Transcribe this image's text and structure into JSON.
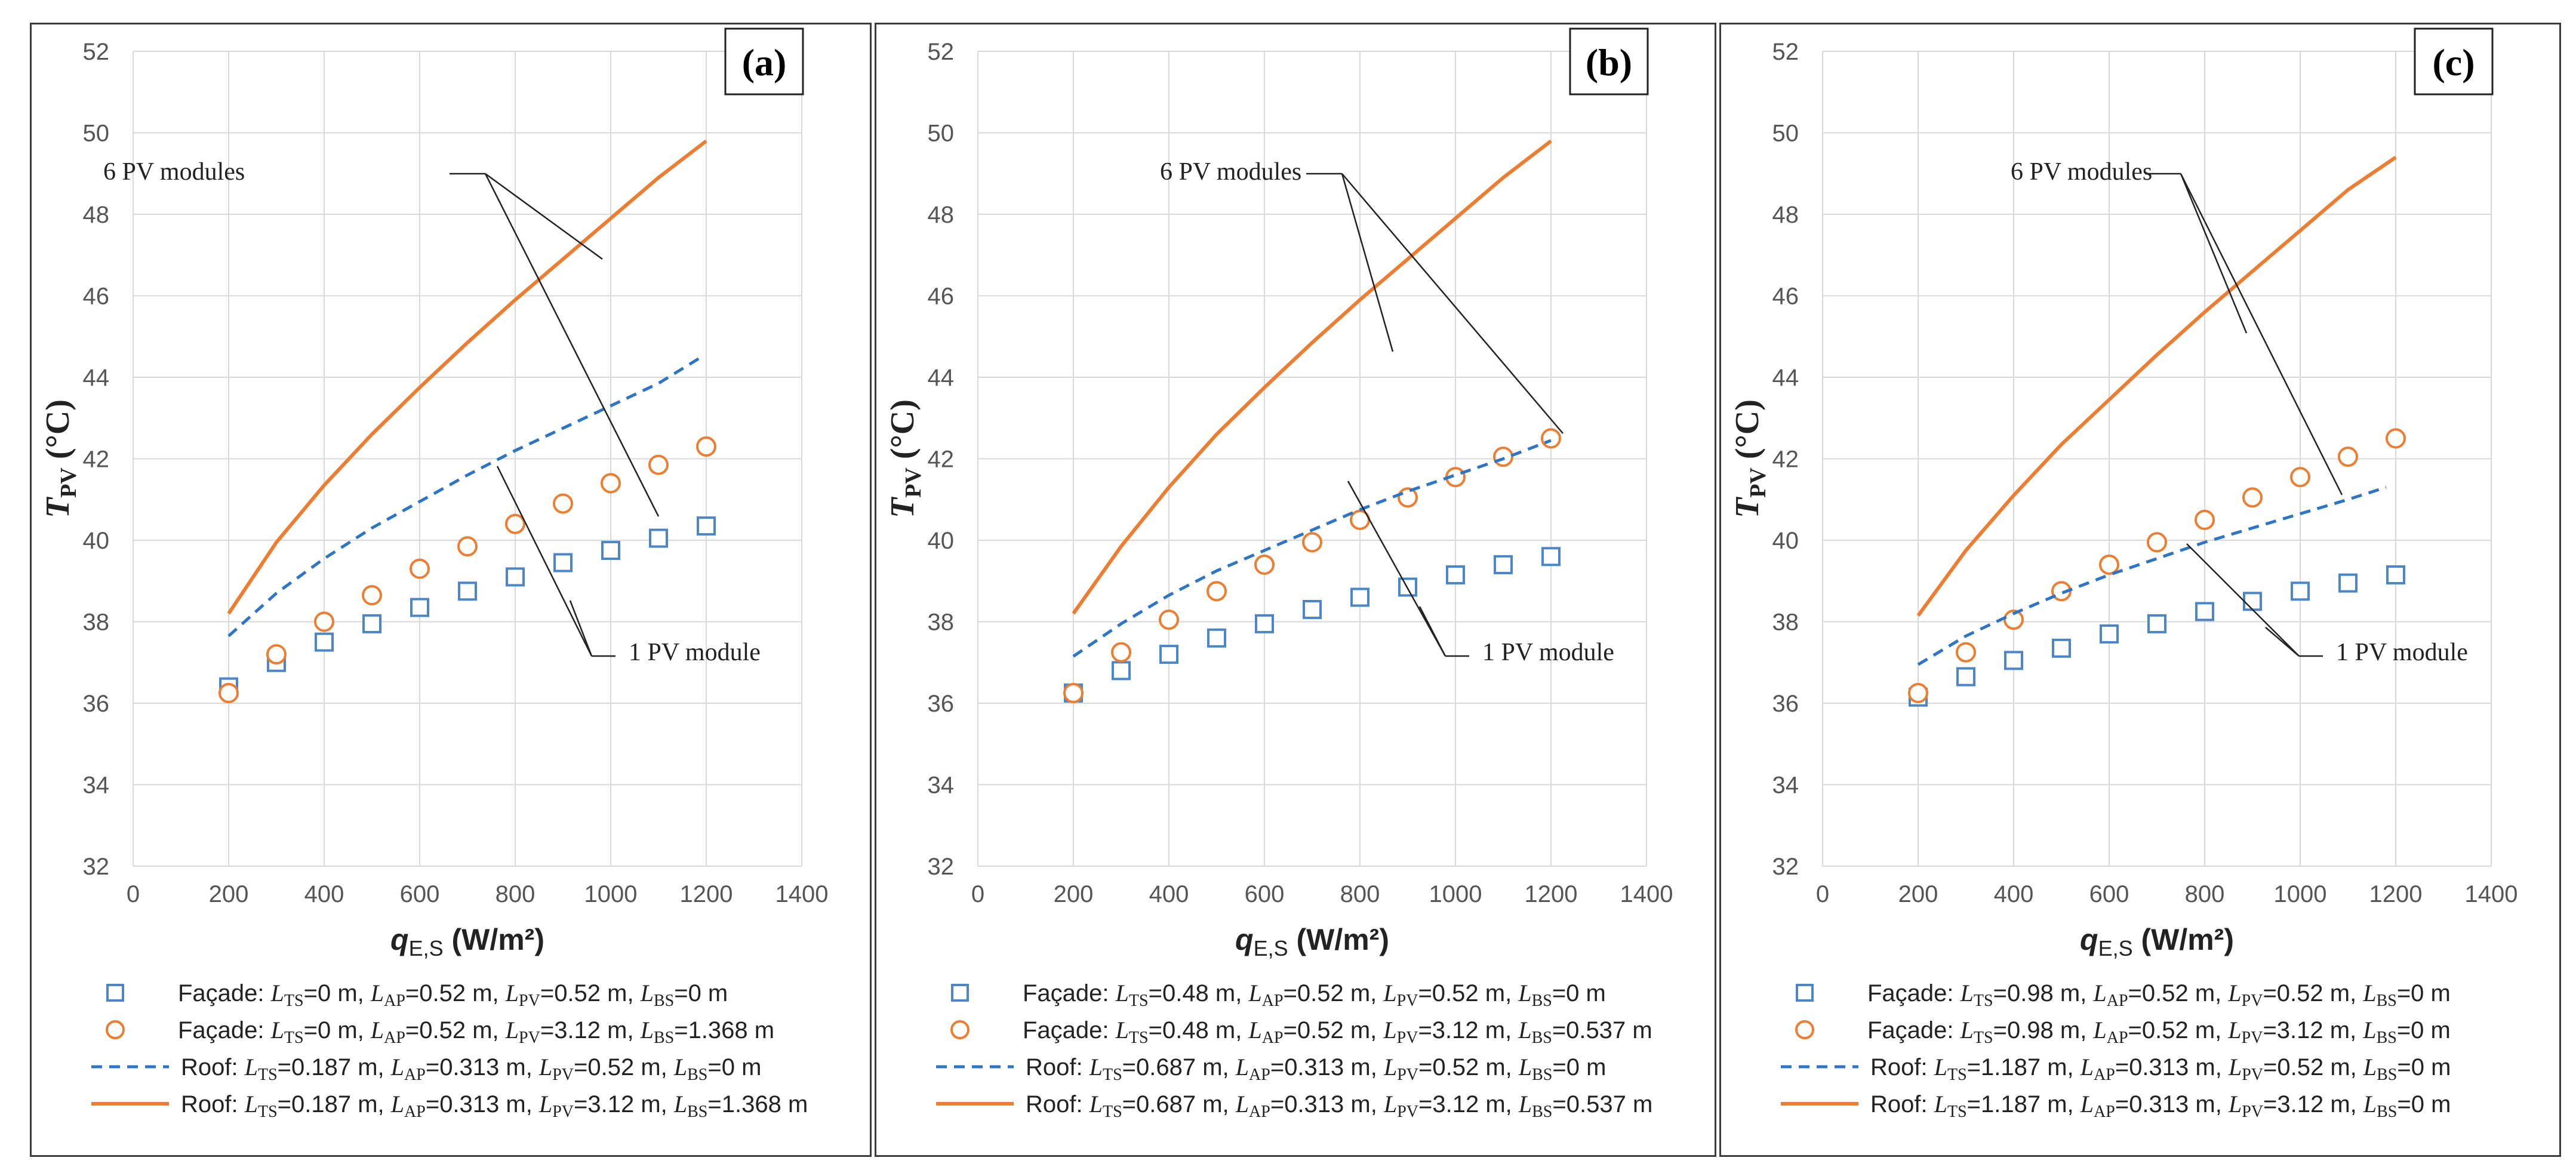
{
  "chart_data": [
    {
      "panel_label": "(a)",
      "type": "scatter",
      "ylabel": "T",
      "ylabel_sub": "PV",
      "ylabel_unit": " (°C)",
      "xlabel": "q",
      "xlabel_sub": "E,S",
      "xlabel_unit": " (W/m²)",
      "xlim": [
        0,
        1400
      ],
      "ylim": [
        32,
        52
      ],
      "xticks": [
        0,
        200,
        400,
        600,
        800,
        1000,
        1200,
        1400
      ],
      "yticks": [
        32,
        34,
        36,
        38,
        40,
        42,
        44,
        46,
        48,
        50,
        52
      ],
      "grid": true,
      "annotations": {
        "six": "6 PV modules",
        "one": "1 PV module"
      },
      "series": [
        {
          "name": "Façade: LTS=0 m, LAP=0.52 m, LPV=0.52 m, LBS=0 m",
          "legend": {
            "prefix": "Façade: ",
            "parts": [
              [
                "L",
                "TS",
                "=0 m, "
              ],
              [
                "L",
                "AP",
                "=0.52 m, "
              ],
              [
                "L",
                "PV",
                "=0.52 m, "
              ],
              [
                "L",
                "BS",
                "=0 m"
              ]
            ]
          },
          "style": "square",
          "color": "#4a86c8",
          "x": [
            200,
            300,
            400,
            500,
            600,
            700,
            800,
            900,
            1000,
            1100,
            1200
          ],
          "y": [
            36.4,
            37.0,
            37.5,
            37.95,
            38.35,
            38.75,
            39.1,
            39.45,
            39.75,
            40.05,
            40.35
          ]
        },
        {
          "name": "Façade: LTS=0 m, LAP=0.52 m, LPV=3.12 m, LBS=1.368 m",
          "legend": {
            "prefix": "Façade: ",
            "parts": [
              [
                "L",
                "TS",
                "=0 m, "
              ],
              [
                "L",
                "AP",
                "=0.52 m, "
              ],
              [
                "L",
                "PV",
                "=3.12 m, "
              ],
              [
                "L",
                "BS",
                "=1.368 m"
              ]
            ]
          },
          "style": "circle",
          "color": "#ed7d31",
          "x": [
            200,
            300,
            400,
            500,
            600,
            700,
            800,
            900,
            1000,
            1100,
            1200
          ],
          "y": [
            36.25,
            37.2,
            38.0,
            38.65,
            39.3,
            39.85,
            40.4,
            40.9,
            41.4,
            41.85,
            42.3
          ]
        },
        {
          "name": "Roof: LTS=0.187 m, LAP=0.313 m, LPV=0.52 m, LBS=0 m",
          "legend": {
            "prefix": "Roof: ",
            "parts": [
              [
                "L",
                "TS",
                "=0.187 m, "
              ],
              [
                "L",
                "AP",
                "=0.313 m, "
              ],
              [
                "L",
                "PV",
                "=0.52 m, "
              ],
              [
                "L",
                "BS",
                "=0 m"
              ]
            ]
          },
          "style": "dashed",
          "color": "#2e75c6",
          "x": [
            200,
            300,
            400,
            500,
            600,
            700,
            800,
            900,
            1000,
            1100,
            1190
          ],
          "y": [
            37.65,
            38.7,
            39.55,
            40.3,
            40.95,
            41.6,
            42.2,
            42.75,
            43.3,
            43.85,
            44.5
          ]
        },
        {
          "name": "Roof: LTS=0.187 m, LAP=0.313 m, LPV=3.12 m, LBS=1.368 m",
          "legend": {
            "prefix": "Roof: ",
            "parts": [
              [
                "L",
                "TS",
                "=0.187 m, "
              ],
              [
                "L",
                "AP",
                "=0.313 m, "
              ],
              [
                "L",
                "PV",
                "=3.12 m, "
              ],
              [
                "L",
                "BS",
                "=1.368 m"
              ]
            ]
          },
          "style": "solid",
          "color": "#ed7d31",
          "x": [
            200,
            300,
            400,
            500,
            600,
            700,
            800,
            900,
            1000,
            1100,
            1200
          ],
          "y": [
            38.2,
            39.95,
            41.35,
            42.6,
            43.75,
            44.85,
            45.9,
            46.9,
            47.9,
            48.9,
            49.8
          ]
        }
      ]
    },
    {
      "panel_label": "(b)",
      "type": "scatter",
      "ylabel": "T",
      "ylabel_sub": "PV",
      "ylabel_unit": " (°C)",
      "xlabel": "q",
      "xlabel_sub": "E,S",
      "xlabel_unit": " (W/m²)",
      "xlim": [
        0,
        1400
      ],
      "ylim": [
        32,
        52
      ],
      "xticks": [
        0,
        200,
        400,
        600,
        800,
        1000,
        1200,
        1400
      ],
      "yticks": [
        32,
        34,
        36,
        38,
        40,
        42,
        44,
        46,
        48,
        50,
        52
      ],
      "grid": true,
      "annotations": {
        "six": "6 PV modules",
        "one": "1 PV module"
      },
      "series": [
        {
          "name": "Façade: LTS=0.48 m, LAP=0.52 m, LPV=0.52 m, LBS=0 m",
          "legend": {
            "prefix": "Façade: ",
            "parts": [
              [
                "L",
                "TS",
                "=0.48 m, "
              ],
              [
                "L",
                "AP",
                "=0.52 m, "
              ],
              [
                "L",
                "PV",
                "=0.52 m, "
              ],
              [
                "L",
                "BS",
                "=0 m"
              ]
            ]
          },
          "style": "square",
          "color": "#4a86c8",
          "x": [
            200,
            300,
            400,
            500,
            600,
            700,
            800,
            900,
            1000,
            1100,
            1200
          ],
          "y": [
            36.25,
            36.8,
            37.2,
            37.6,
            37.95,
            38.3,
            38.6,
            38.85,
            39.15,
            39.4,
            39.6
          ]
        },
        {
          "name": "Façade: LTS=0.48 m, LAP=0.52 m, LPV=3.12 m, LBS=0.537 m",
          "legend": {
            "prefix": "Façade: ",
            "parts": [
              [
                "L",
                "TS",
                "=0.48 m, "
              ],
              [
                "L",
                "AP",
                "=0.52 m, "
              ],
              [
                "L",
                "PV",
                "=3.12 m, "
              ],
              [
                "L",
                "BS",
                "=0.537 m"
              ]
            ]
          },
          "style": "circle",
          "color": "#ed7d31",
          "x": [
            200,
            300,
            400,
            500,
            600,
            700,
            800,
            900,
            1000,
            1100,
            1200
          ],
          "y": [
            36.25,
            37.25,
            38.05,
            38.75,
            39.4,
            39.95,
            40.5,
            41.05,
            41.55,
            42.05,
            42.5
          ]
        },
        {
          "name": "Roof: LTS=0.687 m, LAP=0.313 m, LPV=0.52 m, LBS=0 m",
          "legend": {
            "prefix": "Roof: ",
            "parts": [
              [
                "L",
                "TS",
                "=0.687 m, "
              ],
              [
                "L",
                "AP",
                "=0.313 m, "
              ],
              [
                "L",
                "PV",
                "=0.52 m, "
              ],
              [
                "L",
                "BS",
                "=0 m"
              ]
            ]
          },
          "style": "dashed",
          "color": "#2e75c6",
          "x": [
            200,
            300,
            400,
            500,
            600,
            700,
            800,
            900,
            1000,
            1100,
            1200
          ],
          "y": [
            37.15,
            37.95,
            38.65,
            39.25,
            39.75,
            40.25,
            40.75,
            41.2,
            41.6,
            42.0,
            42.45
          ]
        },
        {
          "name": "Roof: LTS=0.687 m, LAP=0.313 m, LPV=3.12 m, LBS=0.537 m",
          "legend": {
            "prefix": "Roof: ",
            "parts": [
              [
                "L",
                "TS",
                "=0.687 m, "
              ],
              [
                "L",
                "AP",
                "=0.313 m, "
              ],
              [
                "L",
                "PV",
                "=3.12 m, "
              ],
              [
                "L",
                "BS",
                "=0.537 m"
              ]
            ]
          },
          "style": "solid",
          "color": "#ed7d31",
          "x": [
            200,
            300,
            400,
            500,
            600,
            700,
            800,
            900,
            1000,
            1100,
            1200
          ],
          "y": [
            38.2,
            39.85,
            41.3,
            42.6,
            43.75,
            44.85,
            45.9,
            46.9,
            47.9,
            48.9,
            49.8
          ]
        }
      ]
    },
    {
      "panel_label": "(c)",
      "type": "scatter",
      "ylabel": "T",
      "ylabel_sub": "PV",
      "ylabel_unit": " (°C)",
      "xlabel": "q",
      "xlabel_sub": "E,S",
      "xlabel_unit": " (W/m²)",
      "xlim": [
        0,
        1400
      ],
      "ylim": [
        32,
        52
      ],
      "xticks": [
        0,
        200,
        400,
        600,
        800,
        1000,
        1200,
        1400
      ],
      "yticks": [
        32,
        34,
        36,
        38,
        40,
        42,
        44,
        46,
        48,
        50,
        52
      ],
      "grid": true,
      "annotations": {
        "six": "6 PV modules",
        "one": "1 PV module"
      },
      "series": [
        {
          "name": "Façade: LTS=0.98 m, LAP=0.52 m, LPV=0.52 m, LBS=0 m",
          "legend": {
            "prefix": "Façade: ",
            "parts": [
              [
                "L",
                "TS",
                "=0.98 m, "
              ],
              [
                "L",
                "AP",
                "=0.52 m, "
              ],
              [
                "L",
                "PV",
                "=0.52 m, "
              ],
              [
                "L",
                "BS",
                "=0 m"
              ]
            ]
          },
          "style": "square",
          "color": "#4a86c8",
          "x": [
            200,
            300,
            400,
            500,
            600,
            700,
            800,
            900,
            1000,
            1100,
            1200
          ],
          "y": [
            36.15,
            36.65,
            37.05,
            37.35,
            37.7,
            37.95,
            38.25,
            38.5,
            38.75,
            38.95,
            39.15
          ]
        },
        {
          "name": "Façade: LTS=0.98 m, LAP=0.52 m, LPV=3.12 m, LBS=0 m",
          "legend": {
            "prefix": "Façade: ",
            "parts": [
              [
                "L",
                "TS",
                "=0.98 m, "
              ],
              [
                "L",
                "AP",
                "=0.52 m, "
              ],
              [
                "L",
                "PV",
                "=3.12 m, "
              ],
              [
                "L",
                "BS",
                "=0 m"
              ]
            ]
          },
          "style": "circle",
          "color": "#ed7d31",
          "x": [
            200,
            300,
            400,
            500,
            600,
            700,
            800,
            900,
            1000,
            1100,
            1200
          ],
          "y": [
            36.25,
            37.25,
            38.05,
            38.75,
            39.4,
            39.95,
            40.5,
            41.05,
            41.55,
            42.05,
            42.5
          ]
        },
        {
          "name": "Roof: LTS=1.187 m, LAP=0.313 m, LPV=0.52 m, LBS=0 m",
          "legend": {
            "prefix": "Roof: ",
            "parts": [
              [
                "L",
                "TS",
                "=1.187 m, "
              ],
              [
                "L",
                "AP",
                "=0.313 m, "
              ],
              [
                "L",
                "PV",
                "=0.52 m, "
              ],
              [
                "L",
                "BS",
                "=0 m"
              ]
            ]
          },
          "style": "dashed",
          "color": "#2e75c6",
          "x": [
            200,
            300,
            400,
            500,
            600,
            700,
            800,
            900,
            1000,
            1100,
            1180
          ],
          "y": [
            36.95,
            37.65,
            38.2,
            38.7,
            39.15,
            39.55,
            39.95,
            40.3,
            40.65,
            41.0,
            41.3
          ]
        },
        {
          "name": "Roof: LTS=1.187 m, LAP=0.313 m, LPV=3.12 m, LBS=0 m",
          "legend": {
            "prefix": "Roof: ",
            "parts": [
              [
                "L",
                "TS",
                "=1.187 m, "
              ],
              [
                "L",
                "AP",
                "=0.313 m, "
              ],
              [
                "L",
                "PV",
                "=3.12 m, "
              ],
              [
                "L",
                "BS",
                "=0 m"
              ]
            ]
          },
          "style": "solid",
          "color": "#ed7d31",
          "x": [
            200,
            300,
            400,
            500,
            600,
            700,
            800,
            900,
            1000,
            1100,
            1200
          ],
          "y": [
            38.15,
            39.75,
            41.1,
            42.35,
            43.45,
            44.55,
            45.6,
            46.6,
            47.6,
            48.6,
            49.4
          ]
        }
      ]
    }
  ]
}
